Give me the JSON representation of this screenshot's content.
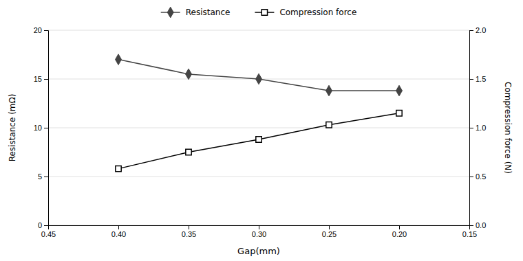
{
  "chart_data": {
    "type": "line",
    "x": [
      0.4,
      0.35,
      0.3,
      0.25,
      0.2
    ],
    "xlim": [
      0.45,
      0.15
    ],
    "xticks": [
      0.45,
      {
        "value": 0.4,
        "label": "0.40"
      },
      0.35,
      {
        "value": 0.3,
        "label": "0.30"
      },
      0.25,
      {
        "value": 0.2,
        "label": "0.20"
      },
      0.15
    ],
    "ylim": [
      0,
      20
    ],
    "yticks": [
      0,
      5,
      10,
      15,
      20
    ],
    "y2lim": [
      0.0,
      2.0
    ],
    "y2ticks": [
      {
        "value": 0.0,
        "label": "0.0"
      },
      0.5,
      {
        "value": 1.0,
        "label": "1.0"
      },
      1.5,
      {
        "value": 2.0,
        "label": "2.0"
      }
    ],
    "xlabel": "Gap(mm)",
    "ylabel": "Resistance (mΩ)",
    "y2label": "Compression force (N)",
    "grid": true,
    "legend": "top",
    "series": [
      {
        "name": "Resistance",
        "values": [
          17.0,
          15.5,
          15.0,
          13.8,
          13.8
        ],
        "color": "#444444",
        "marker": "diamond"
      },
      {
        "name": "Compression force",
        "values": [
          0.58,
          0.75,
          0.88,
          1.03,
          1.15
        ],
        "color": "#000000",
        "marker": "square-open",
        "axis": "y2"
      }
    ]
  }
}
